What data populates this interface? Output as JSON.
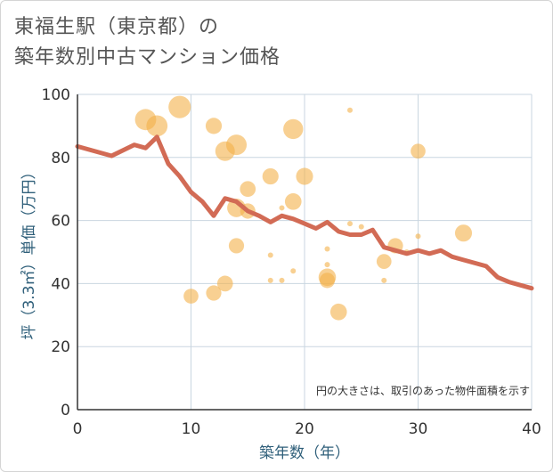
{
  "title": {
    "line1": "東福生駅（東京都）の",
    "line2": "築年数別中古マンション価格"
  },
  "note": "円の大きさは、取引のあった物件面積を示す",
  "colors": {
    "bubble": "#f3b14a",
    "line": "#d26b55",
    "grid": "#c9d6e0",
    "axis_text": "#2f5f7a"
  },
  "chart_data": {
    "type": "scatter",
    "xlabel": "築年数（年）",
    "ylabel": "坪（3.3㎡）単価（万円）",
    "xlim": [
      0,
      40
    ],
    "ylim": [
      0,
      100
    ],
    "xticks": [
      "0",
      "10",
      "20",
      "30",
      "40"
    ],
    "yticks": [
      "0",
      "20",
      "40",
      "60",
      "80",
      "100"
    ],
    "grid": true,
    "bubbles": [
      {
        "x": 6,
        "y": 92,
        "size": 3
      },
      {
        "x": 7,
        "y": 90,
        "size": 3
      },
      {
        "x": 9,
        "y": 96,
        "size": 3.4
      },
      {
        "x": 10,
        "y": 36,
        "size": 1.3
      },
      {
        "x": 12,
        "y": 90,
        "size": 1.6
      },
      {
        "x": 12,
        "y": 37,
        "size": 1.4
      },
      {
        "x": 13,
        "y": 82,
        "size": 2.5
      },
      {
        "x": 13,
        "y": 40,
        "size": 1.5
      },
      {
        "x": 14,
        "y": 84,
        "size": 2.8
      },
      {
        "x": 14,
        "y": 64,
        "size": 2.2
      },
      {
        "x": 14,
        "y": 52,
        "size": 1.4
      },
      {
        "x": 15,
        "y": 70,
        "size": 1.5
      },
      {
        "x": 15,
        "y": 63,
        "size": 1.4
      },
      {
        "x": 17,
        "y": 74,
        "size": 1.6
      },
      {
        "x": 17,
        "y": 49,
        "size": 0.2
      },
      {
        "x": 17,
        "y": 41,
        "size": 0.2
      },
      {
        "x": 18,
        "y": 64,
        "size": 0.2
      },
      {
        "x": 18,
        "y": 41,
        "size": 0.2
      },
      {
        "x": 19,
        "y": 89,
        "size": 2.6
      },
      {
        "x": 19,
        "y": 66,
        "size": 1.7
      },
      {
        "x": 19,
        "y": 44,
        "size": 0.2
      },
      {
        "x": 20,
        "y": 74,
        "size": 1.8
      },
      {
        "x": 22,
        "y": 51,
        "size": 0.2
      },
      {
        "x": 22,
        "y": 46,
        "size": 0.2
      },
      {
        "x": 22,
        "y": 42,
        "size": 1.9
      },
      {
        "x": 22,
        "y": 41,
        "size": 1.4
      },
      {
        "x": 23,
        "y": 31,
        "size": 1.7
      },
      {
        "x": 24,
        "y": 95,
        "size": 0.2
      },
      {
        "x": 24,
        "y": 59,
        "size": 0.2
      },
      {
        "x": 25,
        "y": 58,
        "size": 0.2
      },
      {
        "x": 27,
        "y": 47,
        "size": 1.3
      },
      {
        "x": 27,
        "y": 41,
        "size": 0.2
      },
      {
        "x": 28,
        "y": 52,
        "size": 1.4
      },
      {
        "x": 29,
        "y": 50,
        "size": 0.2
      },
      {
        "x": 30,
        "y": 82,
        "size": 1.3
      },
      {
        "x": 30,
        "y": 55,
        "size": 0.2
      },
      {
        "x": 34,
        "y": 56,
        "size": 1.8
      }
    ],
    "trend": {
      "x": [
        0,
        3,
        5,
        6,
        7,
        8,
        9,
        10,
        11,
        12,
        13,
        14,
        15,
        16,
        17,
        18,
        19,
        20,
        21,
        22,
        23,
        24,
        25,
        26,
        27,
        28,
        29,
        30,
        31,
        32,
        33,
        34,
        35,
        36,
        37,
        38,
        39,
        40
      ],
      "y": [
        83.5,
        80.5,
        84,
        83,
        86.5,
        78,
        74,
        69,
        66,
        61.5,
        67,
        66,
        63,
        61.5,
        59.5,
        61.5,
        60.5,
        59,
        57.5,
        59.5,
        56.5,
        55.5,
        55.5,
        57,
        51.5,
        50.5,
        49.5,
        50.5,
        49.5,
        50.5,
        48.5,
        47.5,
        46.5,
        45.5,
        42,
        40.5,
        39.5,
        38.5
      ]
    }
  }
}
